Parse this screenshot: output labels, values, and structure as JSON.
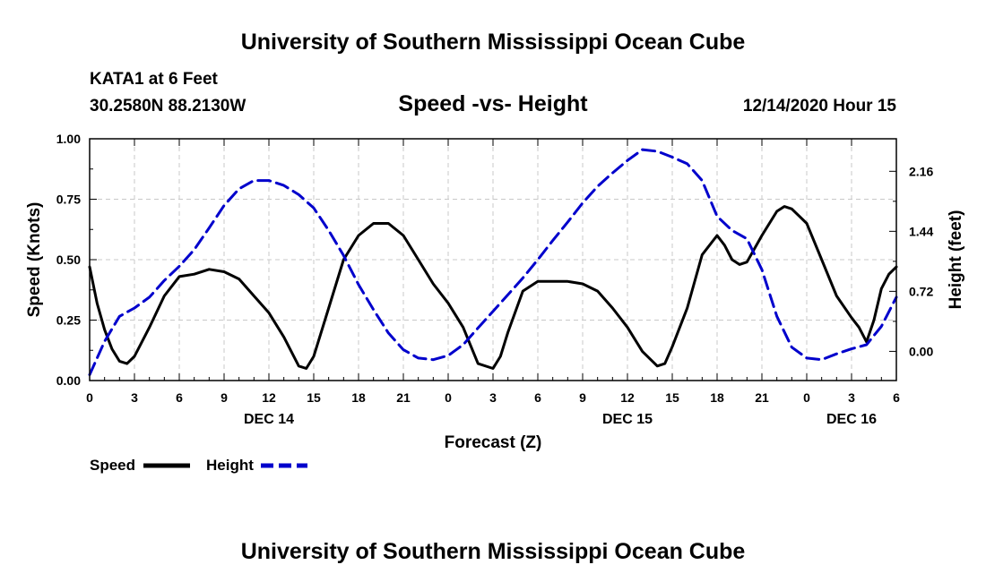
{
  "header": {
    "title": "University of Southern Mississippi Ocean Cube",
    "station": "KATA1 at 6 Feet",
    "location": "30.2580N 88.2130W",
    "chart_title": "Speed -vs- Height",
    "timestamp": "12/14/2020 Hour 15"
  },
  "footer": {
    "title": "University of Southern Mississippi Ocean Cube"
  },
  "colors": {
    "speed": "#000000",
    "height": "#0000cc",
    "grid": "#c8c8c8"
  },
  "legend": {
    "speed_label": "Speed",
    "height_label": "Height"
  },
  "chart_data": {
    "type": "line",
    "title": "Speed -vs- Height",
    "xlabel": "Forecast (Z)",
    "ylabel": "Speed (Knots)",
    "y2label": "Height (feet)",
    "xlim": [
      0,
      54
    ],
    "ylim": [
      0,
      1.0
    ],
    "y2lim": [
      -0.35,
      2.55
    ],
    "x_ticks": [
      0,
      3,
      6,
      9,
      12,
      15,
      18,
      21,
      24,
      27,
      30,
      33,
      36,
      39,
      42,
      45,
      48,
      51,
      54
    ],
    "x_tick_labels": [
      "0",
      "3",
      "6",
      "9",
      "12",
      "15",
      "18",
      "21",
      "0",
      "3",
      "6",
      "9",
      "12",
      "15",
      "18",
      "21",
      "0",
      "3",
      "6"
    ],
    "day_labels": [
      {
        "x": 12,
        "label": "DEC 14"
      },
      {
        "x": 36,
        "label": "DEC 15"
      },
      {
        "x": 51,
        "label": "DEC 16"
      }
    ],
    "y_ticks": [
      0.0,
      0.25,
      0.5,
      0.75,
      1.0
    ],
    "y_tick_labels": [
      "0.00",
      "0.25",
      "0.50",
      "0.75",
      "1.00"
    ],
    "y2_ticks": [
      0.0,
      0.72,
      1.44,
      2.16
    ],
    "y2_tick_labels": [
      "0.00",
      "0.72",
      "1.44",
      "2.16"
    ],
    "grid": true,
    "legend_position": "bottom-left",
    "series": [
      {
        "name": "Speed",
        "axis": "left",
        "style": "solid",
        "x": [
          0,
          0.5,
          1,
          1.5,
          2,
          2.5,
          3,
          4,
          5,
          6,
          7,
          8,
          9,
          10,
          11,
          12,
          13,
          14,
          14.5,
          15,
          16,
          17,
          18,
          19,
          20,
          21,
          22,
          23,
          24,
          25,
          26,
          27,
          27.5,
          28,
          29,
          30,
          31,
          32,
          33,
          34,
          35,
          36,
          37,
          38,
          38.5,
          39,
          40,
          41,
          42,
          42.5,
          43,
          43.5,
          44,
          45,
          46,
          46.5,
          47,
          48,
          49,
          50,
          51,
          51.5,
          52,
          52.5,
          53,
          53.5,
          54
        ],
        "values": [
          0.47,
          0.32,
          0.21,
          0.13,
          0.08,
          0.07,
          0.1,
          0.22,
          0.35,
          0.43,
          0.44,
          0.46,
          0.45,
          0.42,
          0.35,
          0.28,
          0.18,
          0.06,
          0.05,
          0.1,
          0.3,
          0.5,
          0.6,
          0.65,
          0.65,
          0.6,
          0.5,
          0.4,
          0.32,
          0.22,
          0.07,
          0.05,
          0.1,
          0.2,
          0.37,
          0.41,
          0.41,
          0.41,
          0.4,
          0.37,
          0.3,
          0.22,
          0.12,
          0.06,
          0.07,
          0.14,
          0.3,
          0.52,
          0.6,
          0.56,
          0.5,
          0.48,
          0.49,
          0.6,
          0.7,
          0.72,
          0.71,
          0.65,
          0.5,
          0.35,
          0.26,
          0.22,
          0.16,
          0.25,
          0.38,
          0.44,
          0.47
        ]
      },
      {
        "name": "Height",
        "axis": "right",
        "style": "dashed",
        "x": [
          0,
          1,
          2,
          3,
          4,
          5,
          6,
          7,
          8,
          9,
          10,
          11,
          12,
          13,
          14,
          15,
          16,
          17,
          18,
          19,
          20,
          21,
          22,
          23,
          24,
          25,
          26,
          27,
          28,
          29,
          30,
          31,
          32,
          33,
          34,
          35,
          36,
          37,
          38,
          39,
          40,
          41,
          42,
          43,
          44,
          45,
          46,
          47,
          48,
          49,
          50,
          51,
          52,
          53,
          54
        ],
        "values": [
          -0.28,
          0.12,
          0.42,
          0.52,
          0.65,
          0.85,
          1.02,
          1.22,
          1.48,
          1.75,
          1.95,
          2.05,
          2.05,
          1.99,
          1.88,
          1.72,
          1.45,
          1.15,
          0.8,
          0.5,
          0.22,
          0.02,
          -0.08,
          -0.1,
          -0.05,
          0.08,
          0.28,
          0.48,
          0.68,
          0.88,
          1.1,
          1.33,
          1.55,
          1.78,
          1.98,
          2.14,
          2.29,
          2.42,
          2.4,
          2.33,
          2.25,
          2.05,
          1.62,
          1.45,
          1.35,
          0.98,
          0.42,
          0.05,
          -0.08,
          -0.1,
          -0.03,
          0.03,
          0.08,
          0.3,
          0.65
        ]
      }
    ]
  }
}
